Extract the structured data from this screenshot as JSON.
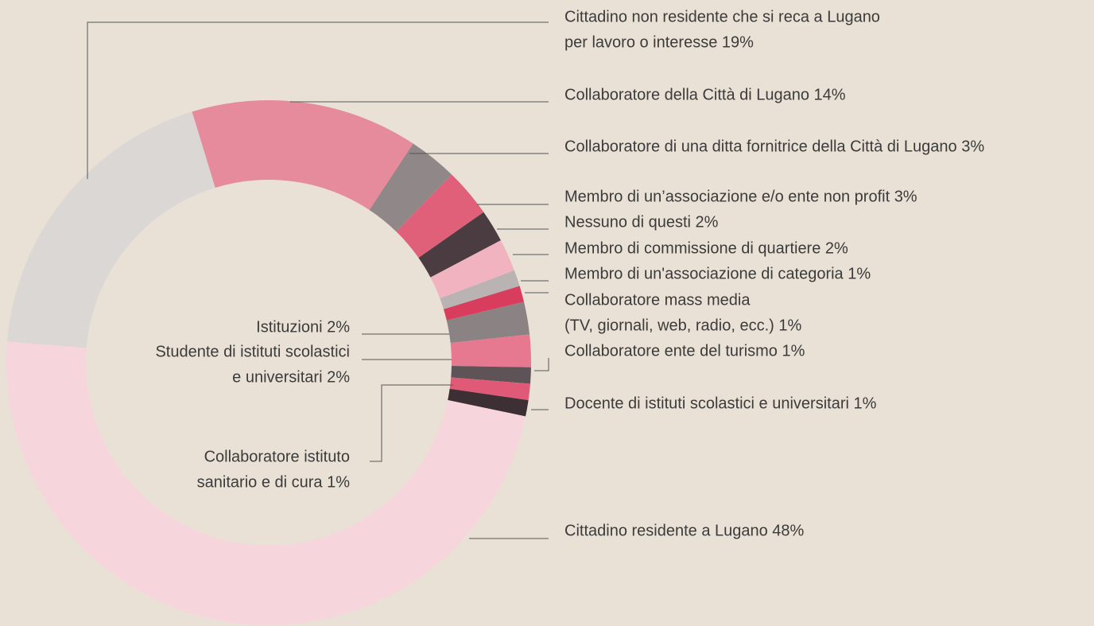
{
  "chart_data": {
    "type": "donut",
    "slices": [
      {
        "label": [
          "Cittadino non residente che si reca a Lugano",
          "per lavoro o interesse 19%"
        ],
        "value": 19,
        "color": "#dbd7d5"
      },
      {
        "label": [
          "Collaboratore della Città di Lugano 14%"
        ],
        "value": 14,
        "color": "#e68b9b"
      },
      {
        "label": [
          "Collaboratore di una ditta fornitrice della Città di Lugano 3%"
        ],
        "value": 3,
        "color": "#8f8788"
      },
      {
        "label": [
          "Membro di un’associazione e/o ente non profit 3%"
        ],
        "value": 3,
        "color": "#e0607a"
      },
      {
        "label": [
          "Nessuno di questi 2%"
        ],
        "value": 2,
        "color": "#4a3c40"
      },
      {
        "label": [
          "Membro di commissione di quartiere 2%"
        ],
        "value": 2,
        "color": "#f2b3c1"
      },
      {
        "label": [
          "Membro di un'associazione di categoria 1%"
        ],
        "value": 1,
        "color": "#b9b4b3"
      },
      {
        "label": [
          "Collaboratore mass media",
          "(TV, giornali, web, radio, ecc.) 1%"
        ],
        "value": 1,
        "color": "#d93d5e"
      },
      {
        "label": [
          "Istituzioni 2%"
        ],
        "value": 2,
        "color": "#8a8283"
      },
      {
        "label": [
          "Studente di istituti scolastici",
          "e universitari 2%"
        ],
        "value": 2,
        "color": "#e6798f"
      },
      {
        "label": [
          "Collaboratore ente del turismo 1%"
        ],
        "value": 1,
        "color": "#5e5457"
      },
      {
        "label": [
          "Collaboratore istituto",
          "sanitario e di cura 1%"
        ],
        "value": 1,
        "color": "#e05a78"
      },
      {
        "label": [
          "Docente di istituti scolastici e universitari 1%"
        ],
        "value": 1,
        "color": "#3d3034"
      },
      {
        "label": [
          "Cittadino residente a Lugano 48%"
        ],
        "value": 48,
        "color": "#f7d5dc"
      }
    ]
  }
}
